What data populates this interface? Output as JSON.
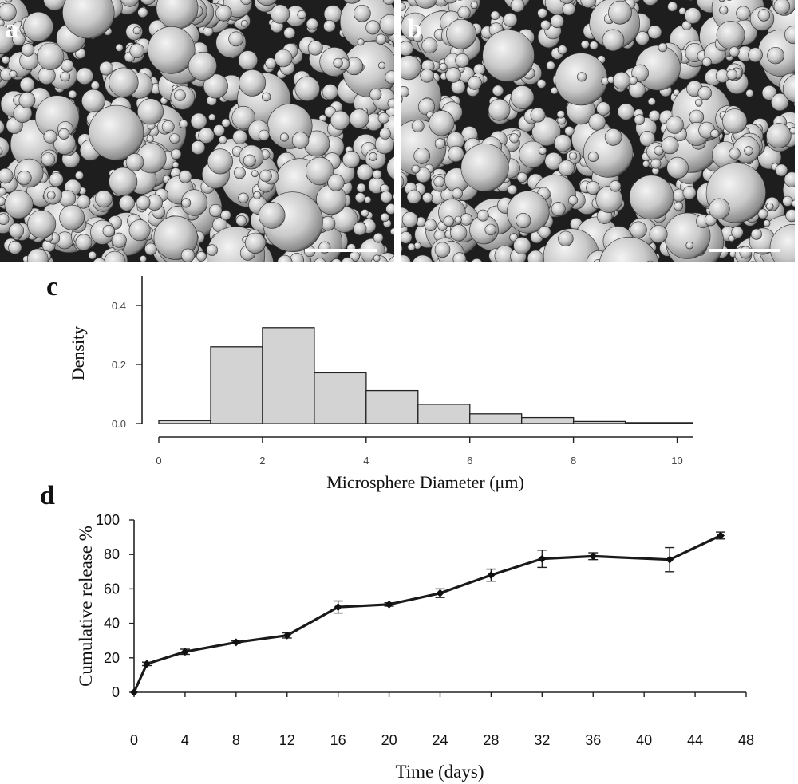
{
  "panels": {
    "a": {
      "label": "a"
    },
    "b": {
      "label": "b"
    },
    "c": {
      "label": "c"
    },
    "d": {
      "label": "d"
    }
  },
  "chart_data": [
    {
      "panel": "c",
      "type": "bar",
      "xlabel": "Microsphere Diameter (μm)",
      "ylabel": "Density",
      "bins": [
        [
          0,
          1
        ],
        [
          1,
          2
        ],
        [
          2,
          3
        ],
        [
          3,
          4
        ],
        [
          4,
          5
        ],
        [
          5,
          6
        ],
        [
          6,
          7
        ],
        [
          7,
          8
        ],
        [
          8,
          9
        ],
        [
          9,
          10.3
        ]
      ],
      "values": [
        0.01,
        0.26,
        0.325,
        0.172,
        0.112,
        0.065,
        0.033,
        0.02,
        0.007,
        0.003
      ],
      "x_ticks": [
        0,
        2,
        4,
        6,
        8,
        10
      ],
      "y_ticks": [
        "0.0",
        "0.2",
        "0.4"
      ],
      "xlim": [
        0,
        10.3
      ],
      "ylim": [
        0,
        0.5
      ],
      "bar_color": "#d3d3d3",
      "grid": false
    },
    {
      "panel": "d",
      "type": "line",
      "xlabel": "Time (days)",
      "ylabel": "Cumulative release %",
      "x": [
        0,
        1,
        4,
        8,
        12,
        16,
        20,
        24,
        28,
        32,
        36,
        42,
        46
      ],
      "y": [
        0,
        16.5,
        23.5,
        29,
        33,
        49.5,
        51,
        57.5,
        68,
        77.5,
        79,
        77,
        91
      ],
      "error": [
        0,
        1,
        1.5,
        0.8,
        1.5,
        3.5,
        1,
        2.5,
        3.5,
        5,
        2,
        7,
        2
      ],
      "x_ticks": [
        0,
        4,
        8,
        12,
        16,
        20,
        24,
        28,
        32,
        36,
        40,
        44,
        48
      ],
      "y_ticks": [
        0,
        20,
        40,
        60,
        80,
        100
      ],
      "xlim": [
        0,
        48
      ],
      "ylim": [
        0,
        100
      ],
      "line_color": "#1a1a1a",
      "grid": false
    }
  ]
}
